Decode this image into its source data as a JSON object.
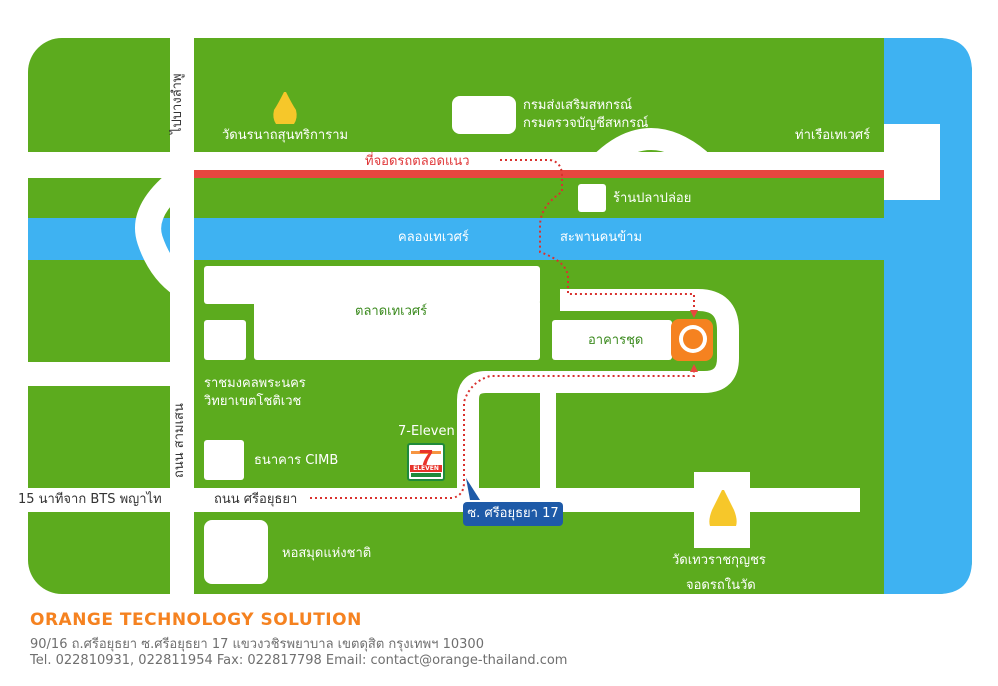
{
  "colors": {
    "grass": "#5cab1e",
    "road": "#ffffff",
    "water": "#3eb2f2",
    "highlight_road": "#e8473f",
    "route": "#d9322f",
    "company": "#f58220",
    "tag": "#1e5aa8",
    "temple": "#f6c72a"
  },
  "labels": {
    "wat_nana": "วัดนรนาถสุนทริการาม",
    "coop_dept": "กรมส่งเสริมสหกรณ์",
    "coop_audit": "กรมตรวจบัญชีสหกรณ์",
    "pier": "ท่าเรือเทเวศร์",
    "parking": "ที่จอดรถตลอดแนว",
    "fish": "ร้านปลาปล่อย",
    "canal": "คลองเทเวศร์",
    "bridge": "สะพานคนข้าม",
    "market": "ตลาดเทเวศร์",
    "building": "อาคารชุด",
    "school_line1": "ราชมงคลพระนคร",
    "school_line2": "วิทยาเขตโชติเวช",
    "seven_eleven": "7-Eleven",
    "cimb": "ธนาคาร CIMB",
    "bts": "15 นาทีจาก BTS พญาไท",
    "sri_ayutthaya": "ถนน ศรีอยุธยา",
    "soi": "ซ. ศรีอยุธยา 17",
    "library": "หอสมุดแห่งชาติ",
    "wat_thewarat": "วัดเทวราชกุญชร",
    "temple_parking": "จอดรถในวัด",
    "krung_kasem": "ไปบางลำพู",
    "samsen": "ถนน สามเสน"
  },
  "icons": {
    "temple": "temple-stupa-icon",
    "seven_eleven": "seven-eleven-logo-icon",
    "company": "orange-logo-icon",
    "route_marker": "route-arrow-icon"
  },
  "footer": {
    "company": "ORANGE TECHNOLOGY SOLUTION",
    "address": "90/16 ถ.ศรีอยุธยา ซ.ศรีอยุธยา 17 แขวงวชิรพยาบาล เขตดุสิต กรุงเทพฯ 10300",
    "contact": "Tel. 022810931, 022811954 Fax: 022817798 Email: contact@orange-thailand.com"
  }
}
